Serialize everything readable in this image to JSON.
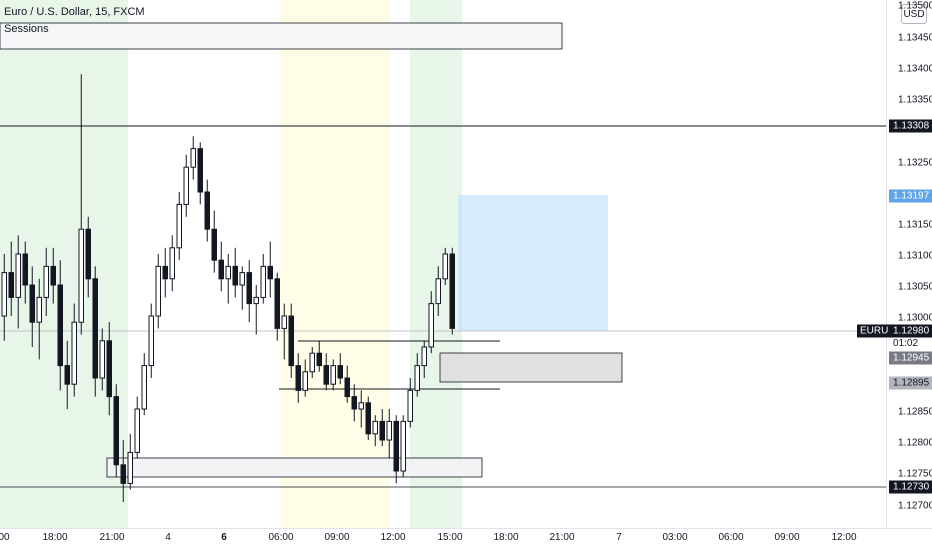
{
  "header": {
    "title": "Euro / U.S. Dollar, 15, FXCM"
  },
  "indicator": {
    "sessions_label": "Sessions"
  },
  "price_scale": {
    "currency": "USD",
    "labels": [
      "1.13500",
      "1.13450",
      "1.13400",
      "1.13350",
      "1.13250",
      "1.13150",
      "1.13100",
      "1.13050",
      "1.13000",
      "1.12850",
      "1.12800",
      "1.12750",
      "1.12700"
    ]
  },
  "price_tags": {
    "level_high": "1.13308",
    "target": "1.13197",
    "current": "1.12980",
    "symbol": "EURUSD",
    "countdown": "01:02",
    "entry": "1.12945",
    "stop": "1.12895",
    "level_low": "1.12730"
  },
  "time_axis": {
    "labels": [
      {
        "text": "00"
      },
      {
        "text": "18:00"
      },
      {
        "text": "21:00"
      },
      {
        "text": "4"
      },
      {
        "text": "6",
        "bold": true
      },
      {
        "text": "06:00"
      },
      {
        "text": "09:00"
      },
      {
        "text": "12:00"
      },
      {
        "text": "15:00"
      },
      {
        "text": "18:00"
      },
      {
        "text": "21:00"
      },
      {
        "text": "7"
      },
      {
        "text": "03:00"
      },
      {
        "text": "06:00"
      },
      {
        "text": "09:00"
      },
      {
        "text": "12:00"
      }
    ]
  },
  "colors": {
    "up": "#131722",
    "down": "#131722",
    "session_green": "#e8f5e9",
    "session_yellow": "#fffde7",
    "target_zone": "#bbdefb",
    "gridline": "#131722"
  },
  "chart_data": {
    "type": "candlestick",
    "symbol": "EURUSD",
    "timeframe": "15",
    "ylim": [
      1.1268,
      1.1353
    ],
    "horizontal_levels": [
      1.13308,
      1.1298,
      1.1273
    ],
    "position": {
      "entry": 1.12945,
      "target": 1.13197,
      "stop": 1.12895
    },
    "candles": [
      [
        1.13,
        1.131,
        1.1296,
        1.1307
      ],
      [
        1.1307,
        1.1312,
        1.13,
        1.1303
      ],
      [
        1.1303,
        1.1313,
        1.1298,
        1.131
      ],
      [
        1.131,
        1.1312,
        1.1302,
        1.1305
      ],
      [
        1.1305,
        1.1308,
        1.1295,
        1.1299
      ],
      [
        1.1299,
        1.1306,
        1.1293,
        1.1303
      ],
      [
        1.1303,
        1.1311,
        1.13,
        1.1308
      ],
      [
        1.1308,
        1.1311,
        1.1302,
        1.1305
      ],
      [
        1.1305,
        1.1309,
        1.1288,
        1.1292
      ],
      [
        1.1292,
        1.1296,
        1.1285,
        1.1289
      ],
      [
        1.1289,
        1.1302,
        1.1287,
        1.1299
      ],
      [
        1.1299,
        1.1339,
        1.1297,
        1.1314
      ],
      [
        1.1314,
        1.1316,
        1.1303,
        1.1306
      ],
      [
        1.1306,
        1.1308,
        1.1287,
        1.129
      ],
      [
        1.129,
        1.1298,
        1.1288,
        1.1296
      ],
      [
        1.1296,
        1.1299,
        1.1284,
        1.1287
      ],
      [
        1.1287,
        1.1289,
        1.1274,
        1.1276
      ],
      [
        1.1276,
        1.128,
        1.127,
        1.1273
      ],
      [
        1.1273,
        1.1281,
        1.1272,
        1.1278
      ],
      [
        1.1278,
        1.1287,
        1.1277,
        1.1285
      ],
      [
        1.1285,
        1.1294,
        1.1284,
        1.1292
      ],
      [
        1.1292,
        1.1302,
        1.129,
        1.13
      ],
      [
        1.13,
        1.131,
        1.1298,
        1.1308
      ],
      [
        1.1308,
        1.1311,
        1.1303,
        1.1306
      ],
      [
        1.1306,
        1.1313,
        1.1304,
        1.1311
      ],
      [
        1.1311,
        1.132,
        1.1309,
        1.1318
      ],
      [
        1.1318,
        1.1326,
        1.1316,
        1.1324
      ],
      [
        1.1324,
        1.1329,
        1.1322,
        1.1327
      ],
      [
        1.1327,
        1.1328,
        1.1318,
        1.132
      ],
      [
        1.132,
        1.1322,
        1.1312,
        1.1314
      ],
      [
        1.1314,
        1.1317,
        1.1307,
        1.1309
      ],
      [
        1.1309,
        1.1312,
        1.1304,
        1.1306
      ],
      [
        1.1306,
        1.131,
        1.1302,
        1.1308
      ],
      [
        1.1308,
        1.1311,
        1.1303,
        1.1305
      ],
      [
        1.1305,
        1.1308,
        1.1301,
        1.1307
      ],
      [
        1.1307,
        1.1309,
        1.1299,
        1.1302
      ],
      [
        1.1302,
        1.1305,
        1.1297,
        1.1303
      ],
      [
        1.1303,
        1.131,
        1.1302,
        1.1308
      ],
      [
        1.1308,
        1.1312,
        1.1303,
        1.1306
      ],
      [
        1.1306,
        1.1307,
        1.1296,
        1.1298
      ],
      [
        1.1298,
        1.1302,
        1.1293,
        1.13
      ],
      [
        1.13,
        1.1302,
        1.129,
        1.1292
      ],
      [
        1.1292,
        1.1294,
        1.1286,
        1.1288
      ],
      [
        1.1288,
        1.1293,
        1.1287,
        1.1291
      ],
      [
        1.1291,
        1.1295,
        1.129,
        1.1294
      ],
      [
        1.1294,
        1.1296,
        1.1291,
        1.1292
      ],
      [
        1.1292,
        1.1294,
        1.1288,
        1.1289
      ],
      [
        1.1289,
        1.1293,
        1.1288,
        1.1292
      ],
      [
        1.1292,
        1.1294,
        1.1289,
        1.129
      ],
      [
        1.129,
        1.1292,
        1.1286,
        1.1287
      ],
      [
        1.1287,
        1.1289,
        1.1283,
        1.1285
      ],
      [
        1.1285,
        1.1288,
        1.1282,
        1.1286
      ],
      [
        1.1286,
        1.1287,
        1.128,
        1.1281
      ],
      [
        1.1281,
        1.1284,
        1.1279,
        1.1283
      ],
      [
        1.1283,
        1.1285,
        1.1279,
        1.128
      ],
      [
        1.128,
        1.1285,
        1.1277,
        1.1283
      ],
      [
        1.1283,
        1.1284,
        1.1273,
        1.1275
      ],
      [
        1.1275,
        1.1284,
        1.1274,
        1.1283
      ],
      [
        1.1283,
        1.129,
        1.1282,
        1.1288
      ],
      [
        1.1288,
        1.1294,
        1.1287,
        1.1292
      ],
      [
        1.1292,
        1.1296,
        1.129,
        1.1295
      ],
      [
        1.1295,
        1.1304,
        1.1294,
        1.1302
      ],
      [
        1.1302,
        1.1308,
        1.13,
        1.1306
      ],
      [
        1.1306,
        1.1311,
        1.1305,
        1.131
      ],
      [
        1.131,
        1.1311,
        1.1297,
        1.1298
      ]
    ]
  }
}
